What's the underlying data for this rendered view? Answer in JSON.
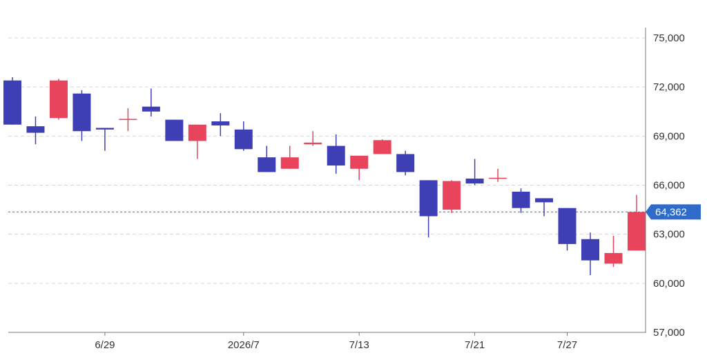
{
  "chart_data": {
    "type": "candlestick",
    "colors": {
      "up": "#e8455c",
      "down": "#3f3fb5",
      "grid": "#d5d5d5",
      "current_line": "#3f6cc4",
      "tag_bg": "#2f6bc9"
    },
    "ylim": [
      57000,
      76000
    ],
    "y_ticks": [
      {
        "value": 75000,
        "label": "75,000"
      },
      {
        "value": 72000,
        "label": "72,000"
      },
      {
        "value": 69000,
        "label": "69,000"
      },
      {
        "value": 66000,
        "label": "66,000"
      },
      {
        "value": 63000,
        "label": "63,000"
      },
      {
        "value": 60000,
        "label": "60,000"
      },
      {
        "value": 57000,
        "label": "57,000"
      }
    ],
    "x_ticks": [
      {
        "index": 4,
        "label": "6/29"
      },
      {
        "index": 10,
        "label": "2026/7"
      },
      {
        "index": 15,
        "label": "7/13"
      },
      {
        "index": 20,
        "label": "7/21"
      },
      {
        "index": 24,
        "label": "7/27"
      }
    ],
    "current_price": {
      "value": 64362,
      "label": "64,362"
    },
    "candles": [
      {
        "o": 72400,
        "h": 72600,
        "l": 69700,
        "c": 69700
      },
      {
        "o": 69600,
        "h": 70200,
        "l": 68500,
        "c": 69200
      },
      {
        "o": 70100,
        "h": 72500,
        "l": 70000,
        "c": 72400
      },
      {
        "o": 71600,
        "h": 71800,
        "l": 68700,
        "c": 69300
      },
      {
        "o": 69500,
        "h": 69500,
        "l": 68100,
        "c": 69400
      },
      {
        "o": 70000,
        "h": 70700,
        "l": 69300,
        "c": 70050
      },
      {
        "o": 70800,
        "h": 71900,
        "l": 70200,
        "c": 70500
      },
      {
        "o": 70000,
        "h": 70000,
        "l": 68700,
        "c": 68700
      },
      {
        "o": 68700,
        "h": 69700,
        "l": 67600,
        "c": 69700
      },
      {
        "o": 69900,
        "h": 70400,
        "l": 69000,
        "c": 69650
      },
      {
        "o": 69400,
        "h": 69900,
        "l": 68100,
        "c": 68200
      },
      {
        "o": 67700,
        "h": 68400,
        "l": 66800,
        "c": 66800
      },
      {
        "o": 67000,
        "h": 68400,
        "l": 67000,
        "c": 67700
      },
      {
        "o": 68500,
        "h": 69300,
        "l": 68400,
        "c": 68600
      },
      {
        "o": 68400,
        "h": 69100,
        "l": 66700,
        "c": 67200
      },
      {
        "o": 67000,
        "h": 67800,
        "l": 66300,
        "c": 67800
      },
      {
        "o": 67900,
        "h": 68800,
        "l": 67900,
        "c": 68750
      },
      {
        "o": 67900,
        "h": 68100,
        "l": 66600,
        "c": 66800
      },
      {
        "o": 66300,
        "h": 66300,
        "l": 62800,
        "c": 64100
      },
      {
        "o": 64500,
        "h": 66300,
        "l": 64300,
        "c": 66250
      },
      {
        "o": 66400,
        "h": 67600,
        "l": 66000,
        "c": 66100
      },
      {
        "o": 66400,
        "h": 67000,
        "l": 66200,
        "c": 66450
      },
      {
        "o": 65600,
        "h": 65800,
        "l": 64300,
        "c": 64600
      },
      {
        "o": 65200,
        "h": 65200,
        "l": 64100,
        "c": 64950
      },
      {
        "o": 64600,
        "h": 64600,
        "l": 62000,
        "c": 62400
      },
      {
        "o": 62700,
        "h": 63100,
        "l": 60500,
        "c": 61400
      },
      {
        "o": 61200,
        "h": 62900,
        "l": 61000,
        "c": 61850
      },
      {
        "o": 62000,
        "h": 65400,
        "l": 62000,
        "c": 64362
      }
    ]
  }
}
